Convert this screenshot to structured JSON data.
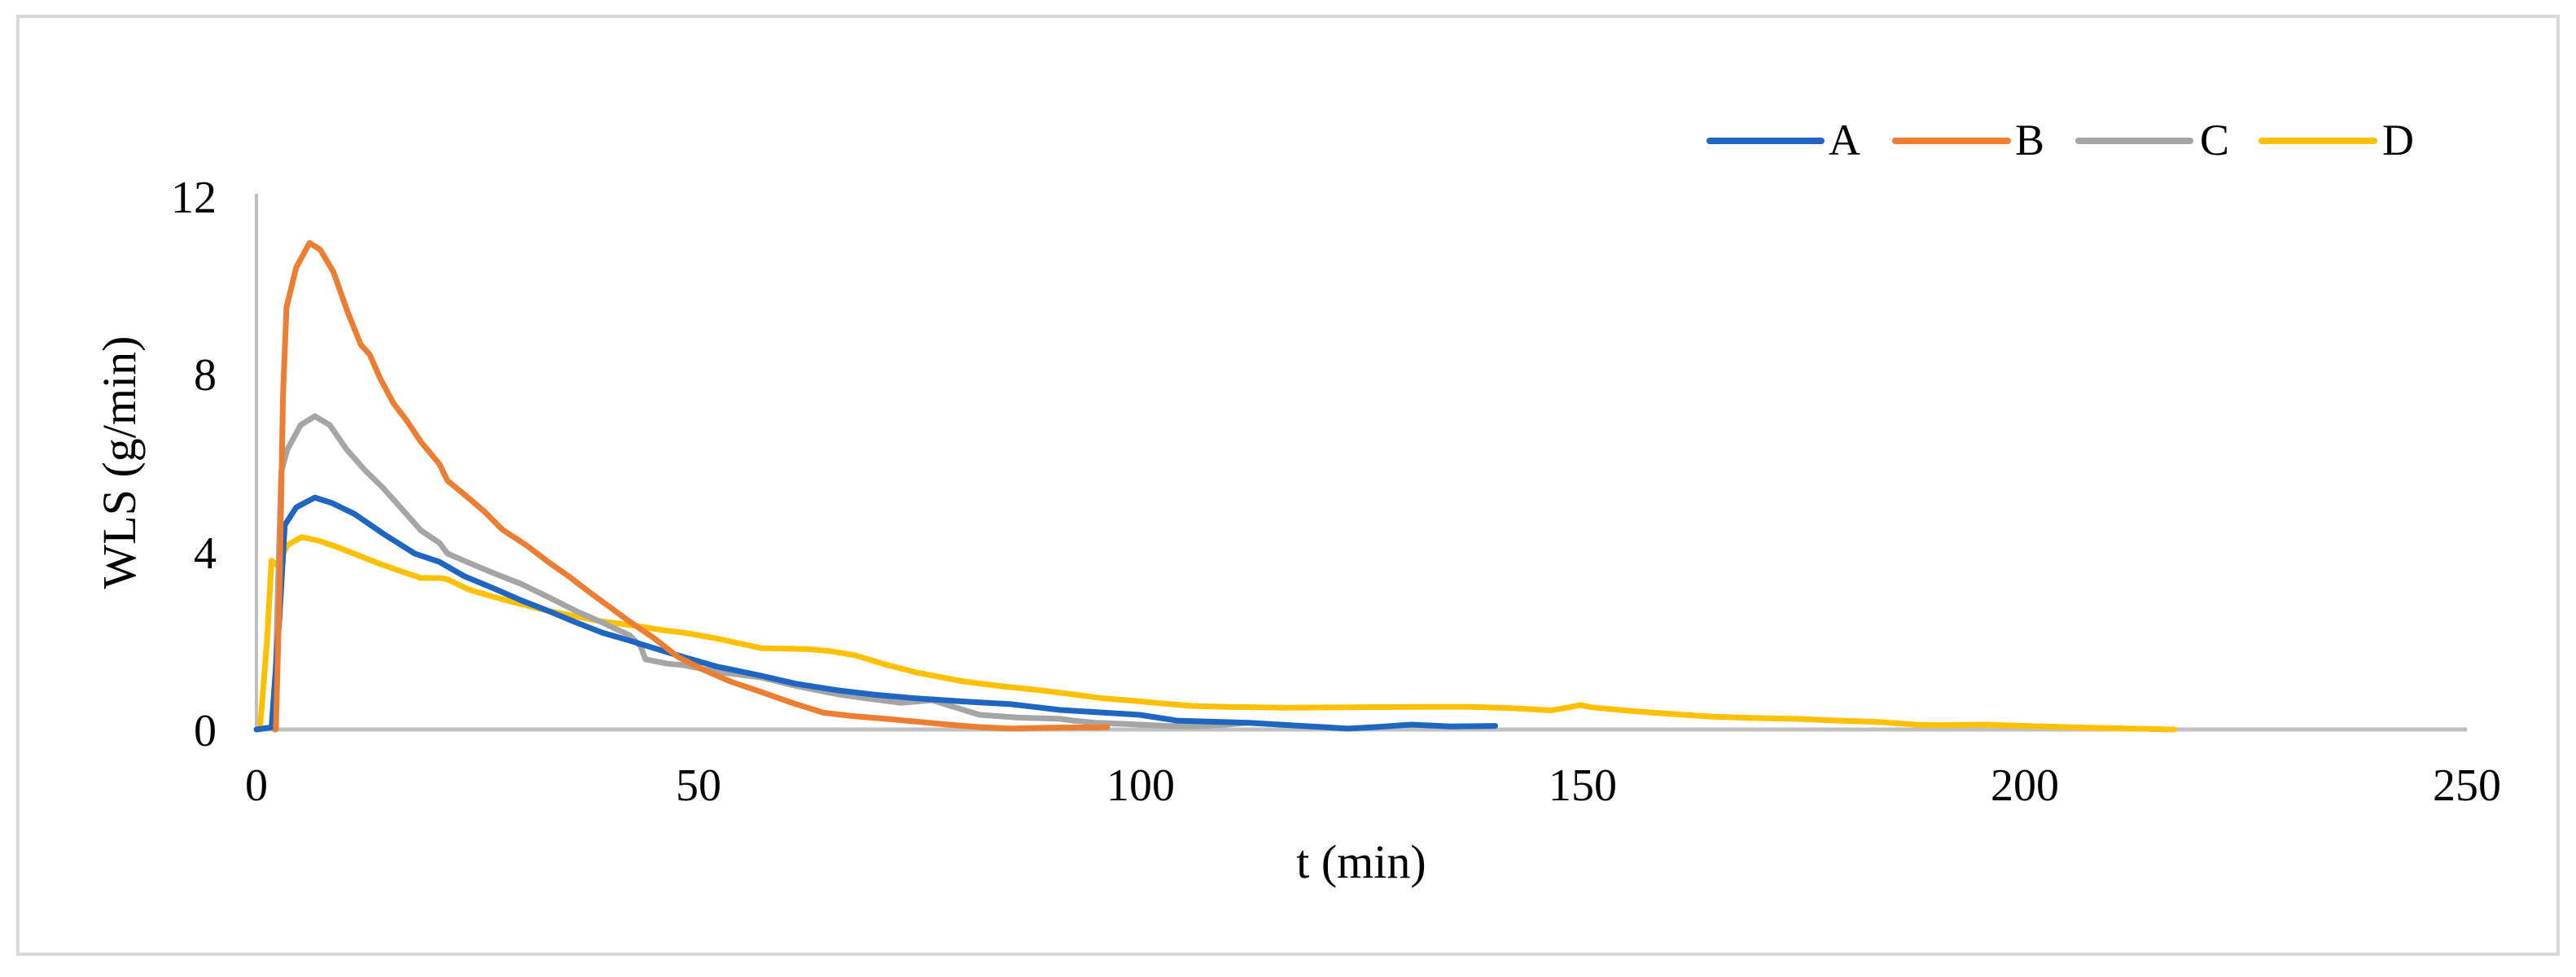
{
  "chart_data": {
    "type": "line",
    "title": "",
    "xlabel": "t (min)",
    "ylabel": "WLS (g/min)",
    "xlim": [
      0,
      250
    ],
    "ylim": [
      0,
      12
    ],
    "x_ticks": [
      0,
      50,
      100,
      150,
      200,
      250
    ],
    "y_ticks": [
      0,
      4,
      8,
      12
    ],
    "grid": false,
    "legend_position": "top-right",
    "series": [
      {
        "name": "A",
        "color": "#1f65c2",
        "points": [
          [
            0,
            0
          ],
          [
            1.7,
            0.05
          ],
          [
            2.6,
            2.5
          ],
          [
            3.2,
            4.6
          ],
          [
            4.5,
            5.0
          ],
          [
            6.6,
            5.22
          ],
          [
            8.5,
            5.1
          ],
          [
            11.1,
            4.85
          ],
          [
            14.3,
            4.41
          ],
          [
            17.9,
            3.96
          ],
          [
            20.7,
            3.77
          ],
          [
            23.5,
            3.45
          ],
          [
            26.9,
            3.17
          ],
          [
            30,
            2.9
          ],
          [
            33.0,
            2.67
          ],
          [
            36,
            2.42
          ],
          [
            39.1,
            2.18
          ],
          [
            42.2,
            2.0
          ],
          [
            45.3,
            1.81
          ],
          [
            48.3,
            1.63
          ],
          [
            52,
            1.42
          ],
          [
            57.1,
            1.21
          ],
          [
            61,
            1.03
          ],
          [
            65.8,
            0.88
          ],
          [
            70,
            0.78
          ],
          [
            74.7,
            0.7
          ],
          [
            80,
            0.63
          ],
          [
            85.3,
            0.57
          ],
          [
            90.9,
            0.44
          ],
          [
            95.8,
            0.38
          ],
          [
            99.9,
            0.33
          ],
          [
            104.1,
            0.2
          ],
          [
            109.1,
            0.17
          ],
          [
            112.2,
            0.15
          ],
          [
            118.3,
            0.08
          ],
          [
            123.5,
            0.02
          ],
          [
            127,
            0.06
          ],
          [
            130.6,
            0.11
          ],
          [
            135,
            0.07
          ],
          [
            140.1,
            0.08
          ]
        ]
      },
      {
        "name": "B",
        "color": "#ed7d31",
        "points": [
          [
            2.2,
            0
          ],
          [
            2.6,
            3.0
          ],
          [
            3.0,
            7.5
          ],
          [
            3.4,
            9.5
          ],
          [
            4.5,
            10.4
          ],
          [
            6.0,
            10.95
          ],
          [
            7.2,
            10.8
          ],
          [
            8.7,
            10.3
          ],
          [
            10.3,
            9.4
          ],
          [
            11.8,
            8.66
          ],
          [
            12.8,
            8.44
          ],
          [
            14.0,
            7.9
          ],
          [
            15.5,
            7.34
          ],
          [
            17.0,
            6.95
          ],
          [
            18.6,
            6.47
          ],
          [
            20.7,
            5.97
          ],
          [
            21.6,
            5.6
          ],
          [
            23.8,
            5.24
          ],
          [
            25.8,
            4.9
          ],
          [
            27.8,
            4.5
          ],
          [
            30.5,
            4.15
          ],
          [
            33.0,
            3.77
          ],
          [
            35.3,
            3.45
          ],
          [
            37.6,
            3.1
          ],
          [
            40,
            2.75
          ],
          [
            42.2,
            2.43
          ],
          [
            45,
            2.05
          ],
          [
            47.7,
            1.63
          ],
          [
            50.5,
            1.35
          ],
          [
            53.6,
            1.08
          ],
          [
            57,
            0.85
          ],
          [
            60.6,
            0.6
          ],
          [
            64.1,
            0.38
          ],
          [
            67.5,
            0.3
          ],
          [
            71.2,
            0.24
          ],
          [
            75,
            0.17
          ],
          [
            78.2,
            0.11
          ],
          [
            82,
            0.05
          ],
          [
            85.3,
            0.02
          ],
          [
            90,
            0.04
          ],
          [
            96.2,
            0.05
          ]
        ]
      },
      {
        "name": "C",
        "color": "#a5a5a5",
        "points": [
          [
            2.0,
            0
          ],
          [
            2.4,
            3.0
          ],
          [
            2.8,
            5.8
          ],
          [
            3.5,
            6.3
          ],
          [
            5.0,
            6.85
          ],
          [
            6.6,
            7.05
          ],
          [
            8.3,
            6.85
          ],
          [
            10.2,
            6.3
          ],
          [
            12.2,
            5.85
          ],
          [
            14.3,
            5.44
          ],
          [
            16.5,
            4.95
          ],
          [
            18.6,
            4.48
          ],
          [
            20.7,
            4.2
          ],
          [
            21.6,
            3.96
          ],
          [
            23.8,
            3.77
          ],
          [
            26.8,
            3.52
          ],
          [
            29.9,
            3.28
          ],
          [
            33.0,
            2.98
          ],
          [
            36.1,
            2.67
          ],
          [
            39.2,
            2.4
          ],
          [
            42.2,
            2.12
          ],
          [
            43.4,
            1.89
          ],
          [
            44.0,
            1.58
          ],
          [
            46.5,
            1.48
          ],
          [
            48.3,
            1.45
          ],
          [
            52,
            1.3
          ],
          [
            57.1,
            1.17
          ],
          [
            61,
            0.98
          ],
          [
            65.8,
            0.79
          ],
          [
            69,
            0.7
          ],
          [
            72.9,
            0.6
          ],
          [
            76.4,
            0.66
          ],
          [
            79,
            0.5
          ],
          [
            81.8,
            0.33
          ],
          [
            86,
            0.27
          ],
          [
            90.9,
            0.24
          ],
          [
            92.4,
            0.2
          ],
          [
            95,
            0.15
          ],
          [
            99.9,
            0.11
          ],
          [
            103,
            0.08
          ],
          [
            106,
            0.07
          ],
          [
            109,
            0.1
          ],
          [
            112.2,
            0.15
          ]
        ]
      },
      {
        "name": "D",
        "color": "#ffc000",
        "points": [
          [
            0.4,
            0
          ],
          [
            1.2,
            2.0
          ],
          [
            1.7,
            3.8
          ],
          [
            2.3,
            3.7
          ],
          [
            2.5,
            3.74
          ],
          [
            3.5,
            4.15
          ],
          [
            5.1,
            4.33
          ],
          [
            7.0,
            4.25
          ],
          [
            9.2,
            4.1
          ],
          [
            11.5,
            3.92
          ],
          [
            13.8,
            3.74
          ],
          [
            16.2,
            3.57
          ],
          [
            18.6,
            3.41
          ],
          [
            20.7,
            3.41
          ],
          [
            21.6,
            3.38
          ],
          [
            24,
            3.15
          ],
          [
            26.9,
            2.98
          ],
          [
            30,
            2.82
          ],
          [
            33.0,
            2.67
          ],
          [
            36,
            2.55
          ],
          [
            39.1,
            2.43
          ],
          [
            42.2,
            2.35
          ],
          [
            46.5,
            2.22
          ],
          [
            48.3,
            2.18
          ],
          [
            52,
            2.05
          ],
          [
            57.1,
            1.83
          ],
          [
            62.3,
            1.81
          ],
          [
            65,
            1.76
          ],
          [
            67.7,
            1.67
          ],
          [
            71,
            1.47
          ],
          [
            74.7,
            1.28
          ],
          [
            80.0,
            1.08
          ],
          [
            84,
            0.98
          ],
          [
            88.8,
            0.88
          ],
          [
            92,
            0.8
          ],
          [
            95.8,
            0.7
          ],
          [
            99,
            0.65
          ],
          [
            101.7,
            0.6
          ],
          [
            105.9,
            0.53
          ],
          [
            110,
            0.51
          ],
          [
            116.5,
            0.49
          ],
          [
            123,
            0.5
          ],
          [
            130.6,
            0.51
          ],
          [
            137.6,
            0.51
          ],
          [
            142,
            0.48
          ],
          [
            146.4,
            0.43
          ],
          [
            148.5,
            0.5
          ],
          [
            149.7,
            0.55
          ],
          [
            151,
            0.5
          ],
          [
            155.3,
            0.42
          ],
          [
            160,
            0.35
          ],
          [
            164.7,
            0.29
          ],
          [
            169,
            0.26
          ],
          [
            174.1,
            0.24
          ],
          [
            179,
            0.2
          ],
          [
            183.5,
            0.17
          ],
          [
            188.2,
            0.1
          ],
          [
            192,
            0.1
          ],
          [
            195.3,
            0.11
          ],
          [
            200,
            0.08
          ],
          [
            207.0,
            0.04
          ],
          [
            212,
            0.02
          ],
          [
            216.9,
            0.0
          ]
        ]
      }
    ]
  },
  "axes": {
    "x_title": "t (min)",
    "y_title": "WLS (g/min)",
    "x_tick_labels": [
      "0",
      "50",
      "100",
      "150",
      "200",
      "250"
    ],
    "y_tick_labels": [
      "0",
      "4",
      "8",
      "12"
    ]
  },
  "legend": {
    "items": [
      {
        "label": "A",
        "color": "#1f65c2"
      },
      {
        "label": "B",
        "color": "#ed7d31"
      },
      {
        "label": "C",
        "color": "#a5a5a5"
      },
      {
        "label": "D",
        "color": "#ffc000"
      }
    ]
  },
  "colors": {
    "axis": "#bfbfbf",
    "frame": "#d9d9d9",
    "background": "#ffffff"
  }
}
